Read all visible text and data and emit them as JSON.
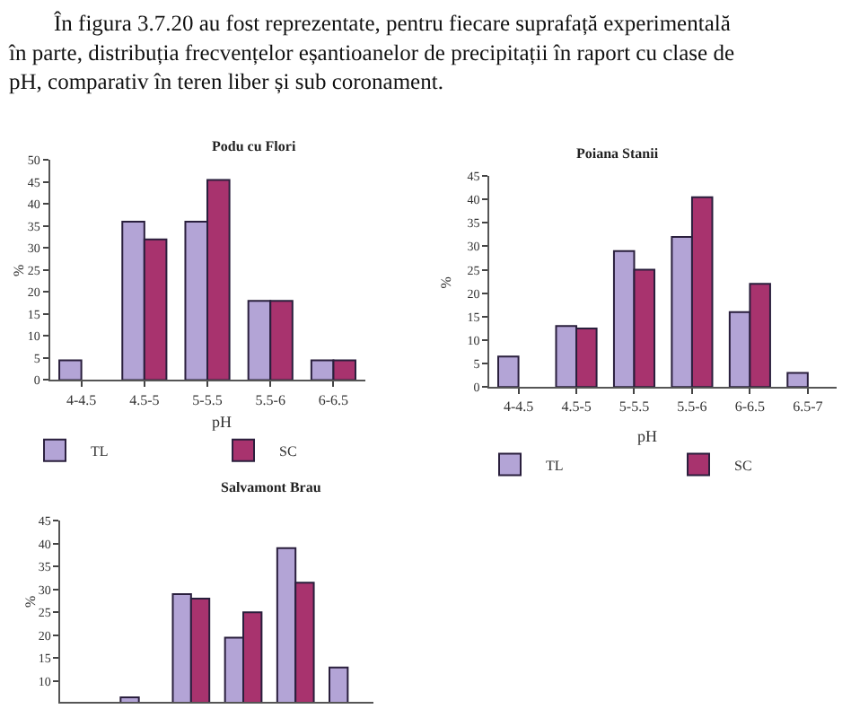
{
  "chart_data": [
    {
      "type": "bar",
      "title": "Podu cu Flori",
      "xlabel": "pH",
      "ylabel": "%",
      "annotations": [
        "În figura 3.7.20 au fost reprezentate, pentru fiecare suprafață experimentală în parte, distribuția frecvențelor eșantioanelor de precipitații în raport cu clase de pH, comparativ în teren liber și sub coronament."
      ],
      "categories": [
        "4-4.5",
        "4.5-5",
        "5-5.5",
        "5.5-6",
        "6-6.5"
      ],
      "series": [
        {
          "name": "TL",
          "color": "#b3a4d6",
          "values": [
            4.5,
            36,
            36,
            18,
            4.5
          ]
        },
        {
          "name": "SC",
          "color": "#a8336e",
          "values": [
            null,
            32,
            45.5,
            18,
            4.5
          ]
        }
      ],
      "ylim": [
        0,
        50
      ],
      "yticks": [
        0,
        5,
        10,
        15,
        20,
        25,
        30,
        35,
        40,
        45,
        50
      ],
      "legend": "bottom"
    },
    {
      "type": "bar",
      "title": "Poiana Stanii",
      "xlabel": "pH",
      "ylabel": "%",
      "categories": [
        "4-4.5",
        "4.5-5",
        "5-5.5",
        "5.5-6",
        "6-6.5",
        "6.5-7"
      ],
      "series": [
        {
          "name": "TL",
          "color": "#b3a4d6",
          "values": [
            6.5,
            13,
            29,
            32,
            16,
            3
          ]
        },
        {
          "name": "SC",
          "color": "#a8336e",
          "values": [
            null,
            12.5,
            25,
            40.5,
            22,
            null
          ]
        }
      ],
      "ylim": [
        0,
        45
      ],
      "yticks": [
        0,
        5,
        10,
        15,
        20,
        25,
        30,
        35,
        40,
        45
      ],
      "legend": "bottom"
    },
    {
      "type": "bar",
      "title": "Salvamont Brau",
      "ylabel": "%",
      "categories": [
        null,
        null,
        null,
        null,
        null,
        null
      ],
      "series": [
        {
          "color": "#b3a4d6",
          "values": [
            null,
            6.5,
            29,
            19.5,
            39,
            13
          ]
        },
        {
          "color": "#a8336e",
          "values": [
            null,
            null,
            28,
            25,
            31.5,
            null
          ]
        }
      ],
      "ylim": [
        5.5,
        45
      ],
      "yticks": [
        10,
        15,
        20,
        25,
        30,
        35,
        40,
        45
      ],
      "legend": false,
      "tick_labels": "y"
    }
  ]
}
